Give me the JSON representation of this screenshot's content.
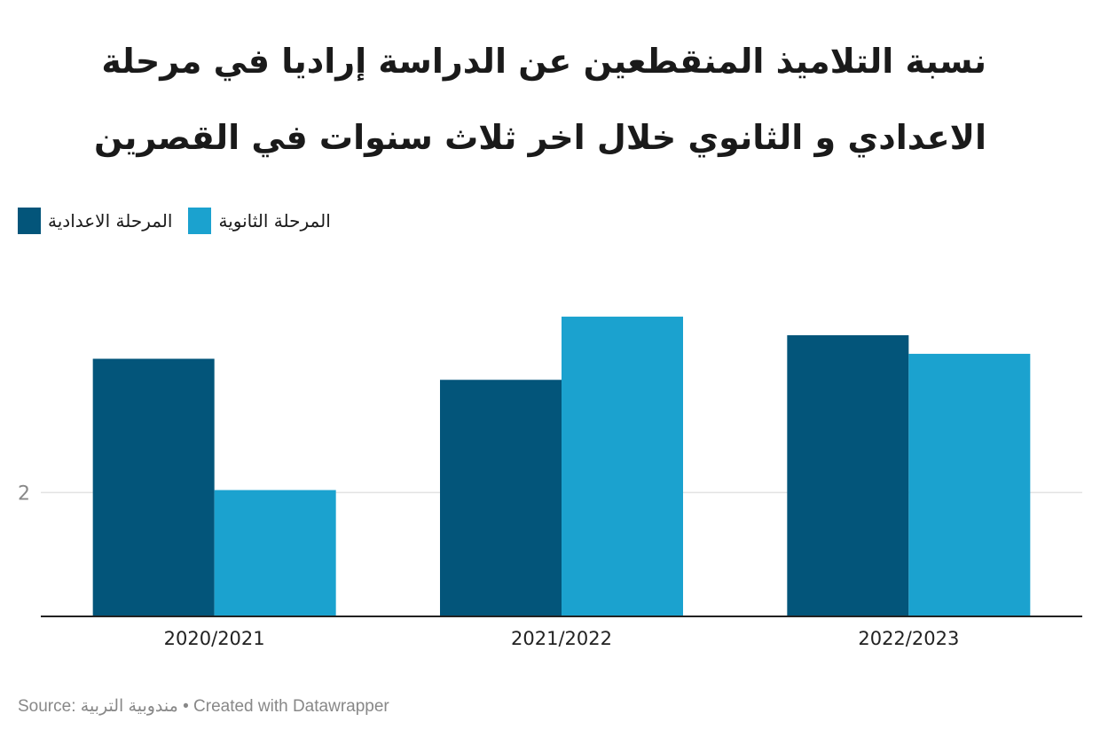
{
  "title": "نسبة التلاميذ المنقطعين عن الدراسة إراديا  في مرحلة الاعدادي و الثانوي  خلال اخر ثلاث  سنوات في القصرين",
  "legend": [
    {
      "label": "المرحلة الاعدادية",
      "color": "#03557a"
    },
    {
      "label": "المرحلة الثانوية",
      "color": "#1ba2cf"
    }
  ],
  "chart_data": {
    "type": "bar",
    "title": "نسبة التلاميذ المنقطعين عن الدراسة إراديا  في مرحلة الاعدادي و الثانوي  خلال اخر ثلاث  سنوات في القصرين",
    "categories": [
      "2020/2021",
      "2021/2022",
      "2022/2023"
    ],
    "series": [
      {
        "name": "المرحلة الاعدادية",
        "color": "#03557a",
        "values": [
          3.08,
          2.91,
          3.27
        ]
      },
      {
        "name": "المرحلة الثانوية",
        "color": "#1ba2cf",
        "values": [
          2.02,
          3.42,
          3.12
        ]
      }
    ],
    "yticks": [
      2
    ],
    "ylim": [
      1,
      3.9
    ],
    "grid": true,
    "legend_position": "top-left"
  },
  "footer": {
    "source_label": "Source:",
    "source_name": "مندوبية التربية",
    "credit": "• Created with Datawrapper"
  }
}
